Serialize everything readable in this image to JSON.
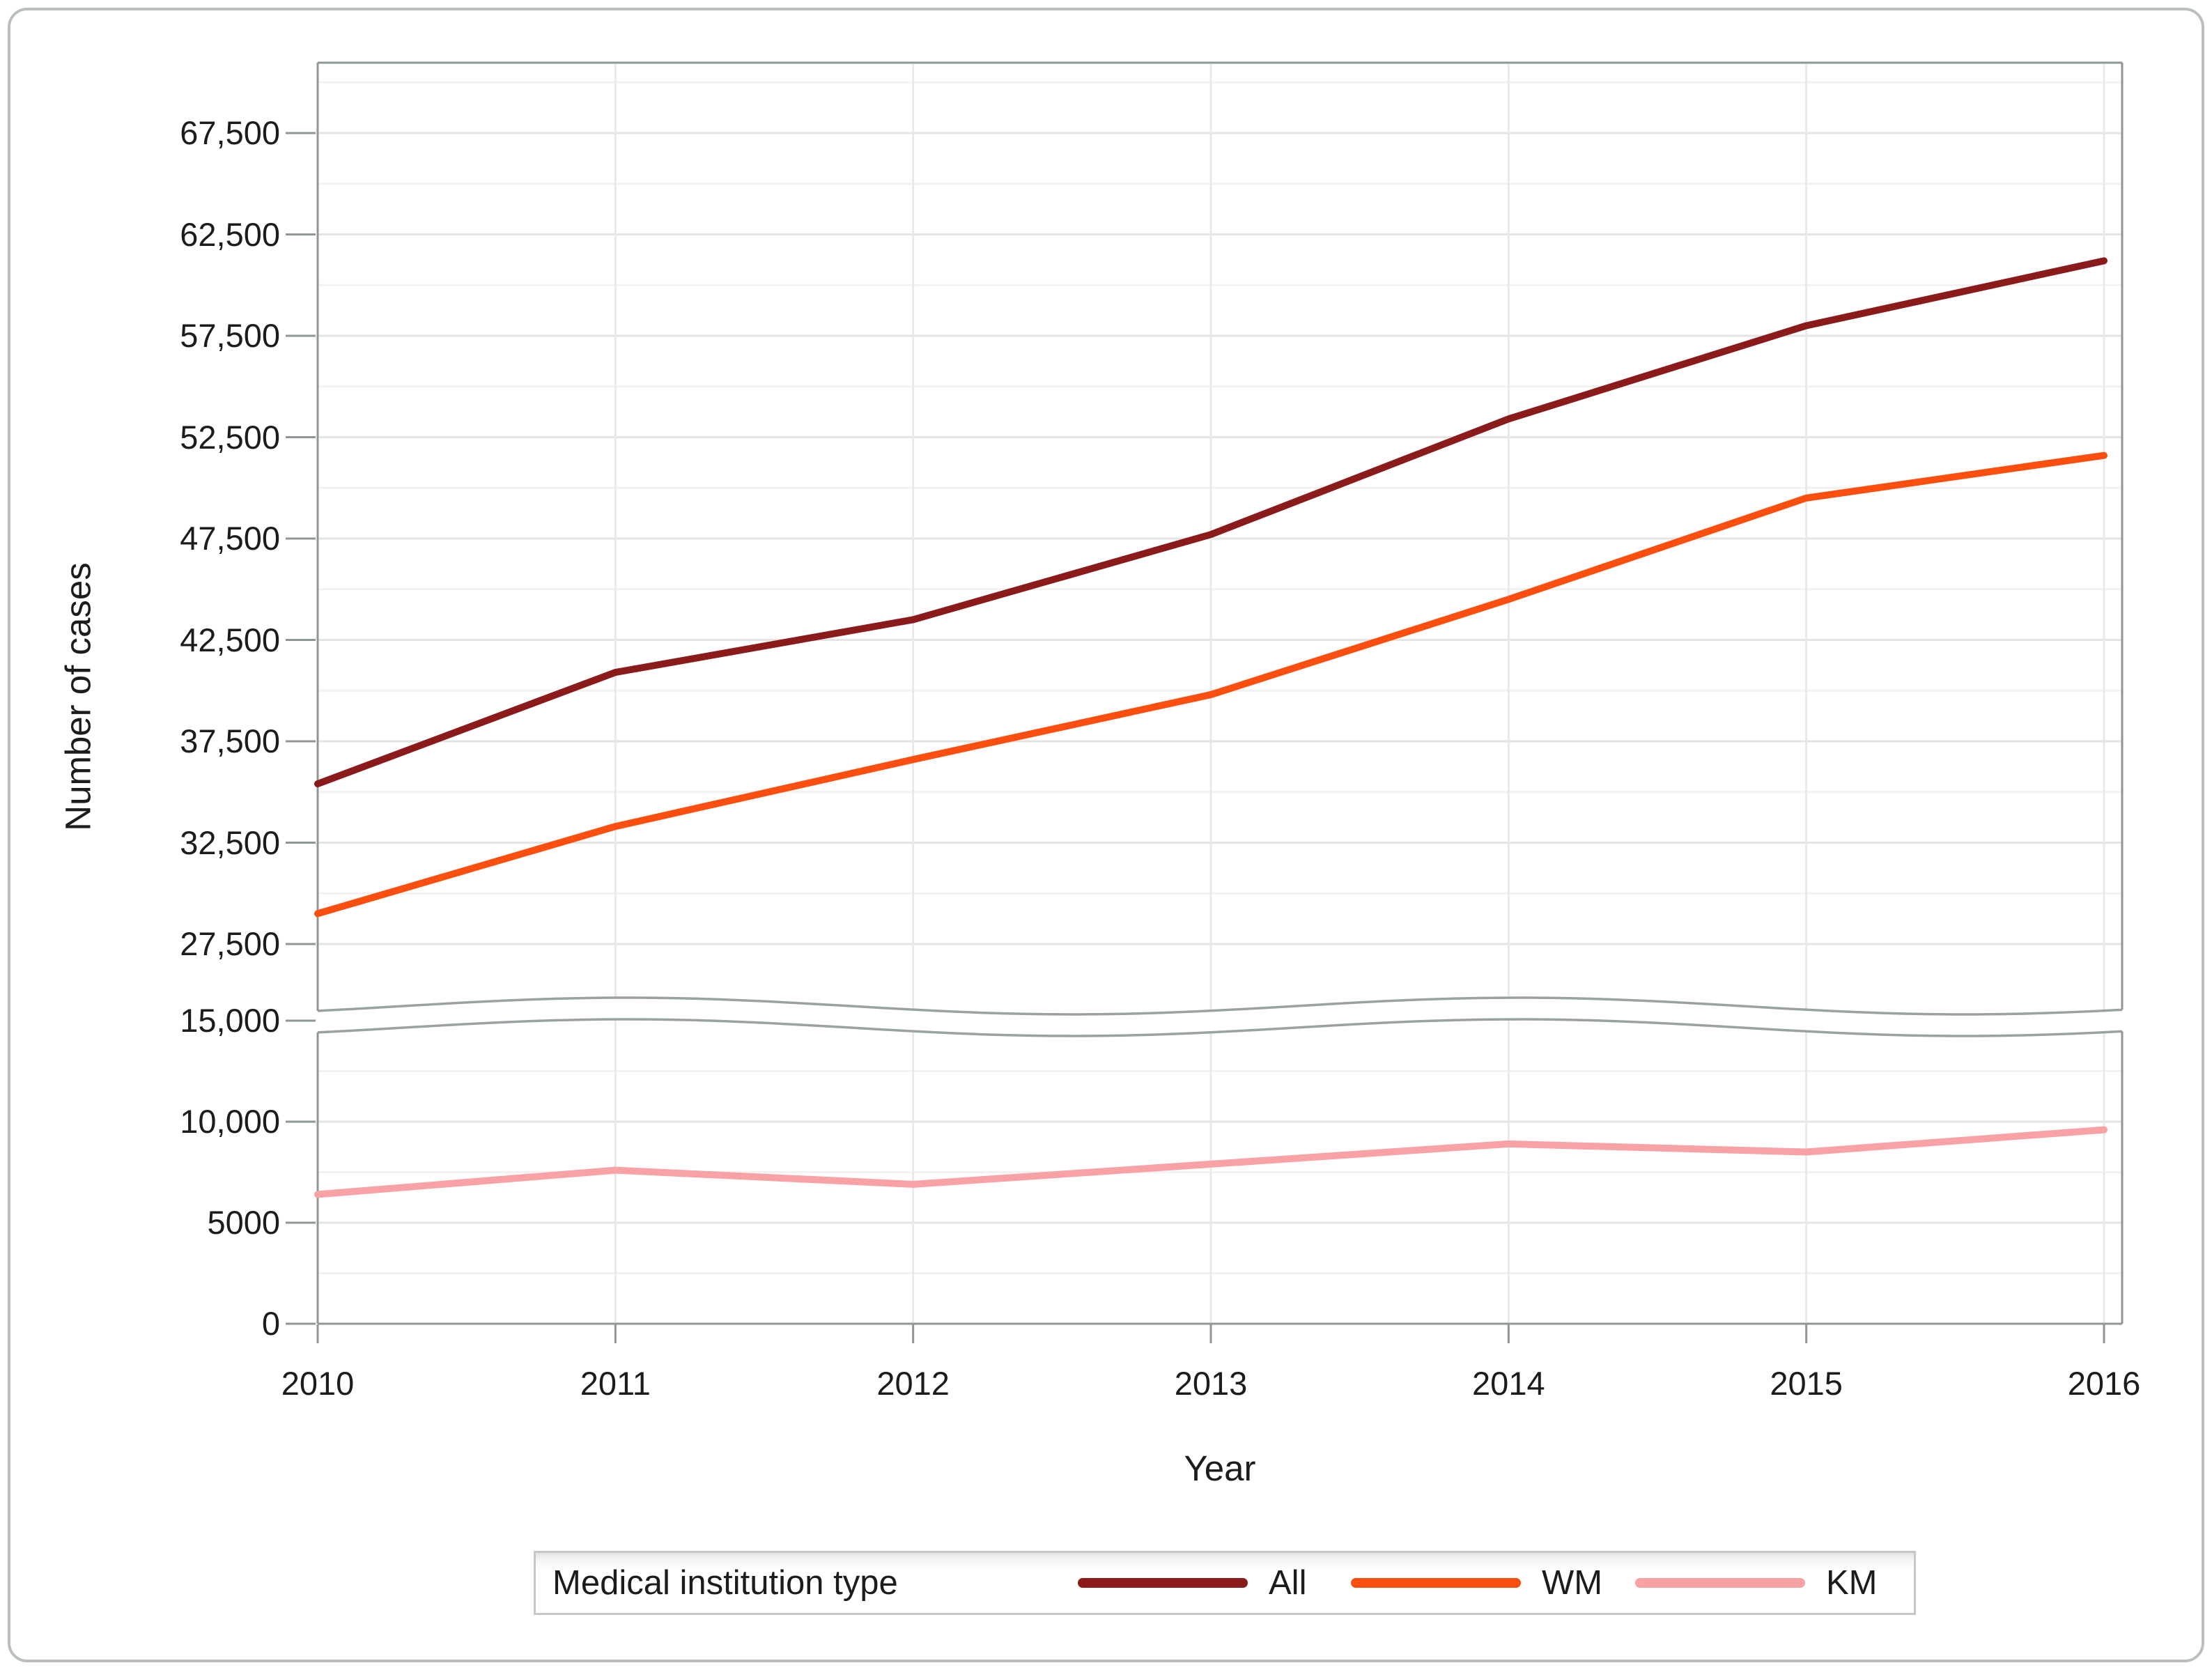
{
  "figure": {
    "frame_color": "#8e9696",
    "wave_color": "#99a1a1",
    "grid_major_color": "#e4e4e4",
    "grid_minor_color": "#f2f2f2",
    "grid_vertical_color": "#e9e9e9",
    "text_color": "#1c1c1c",
    "border_color": "#b9bfbf",
    "background": "#ffffff"
  },
  "chart_data": {
    "type": "line",
    "title": "",
    "xlabel": "Year",
    "ylabel": "Number of cases",
    "x": [
      2010,
      2011,
      2012,
      2013,
      2014,
      2015,
      2016
    ],
    "series": [
      {
        "name": "All",
        "axis": "upper",
        "color": "#8B1B1B",
        "values": [
          35400,
          40900,
          43500,
          47700,
          53400,
          58000,
          61200
        ]
      },
      {
        "name": "WM",
        "axis": "upper",
        "color": "#FC4E0E",
        "values": [
          29000,
          33300,
          36600,
          39800,
          44500,
          49500,
          51600
        ]
      },
      {
        "name": "KM",
        "axis": "lower",
        "color": "#F9A2A5",
        "values": [
          6400,
          7600,
          6900,
          7900,
          8900,
          8500,
          9600
        ]
      }
    ],
    "broken_axis": {
      "hidden_range": [
        15000,
        27500
      ],
      "upper_range": [
        27500,
        70000
      ],
      "lower_range": [
        0,
        15000
      ]
    },
    "upper_ticks": [
      {
        "value": 67500,
        "label": "67,500"
      },
      {
        "value": 62500,
        "label": "62,500"
      },
      {
        "value": 57500,
        "label": "57,500"
      },
      {
        "value": 52500,
        "label": "52,500"
      },
      {
        "value": 47500,
        "label": "47,500"
      },
      {
        "value": 42500,
        "label": "42,500"
      },
      {
        "value": 37500,
        "label": "37,500"
      },
      {
        "value": 32500,
        "label": "32,500"
      },
      {
        "value": 27500,
        "label": "27,500"
      }
    ],
    "lower_ticks": [
      {
        "value": 15000,
        "label": "15,000"
      },
      {
        "value": 10000,
        "label": "10,000"
      },
      {
        "value": 5000,
        "label": "5000"
      },
      {
        "value": 0,
        "label": "0"
      }
    ],
    "x_tick_labels": [
      "2010",
      "2011",
      "2012",
      "2013",
      "2014",
      "2015",
      "2016"
    ],
    "grid": true,
    "legend_position": "bottom"
  },
  "legend": {
    "title": "Medical institution type",
    "items": [
      {
        "label": "All",
        "color": "#8B1B1B"
      },
      {
        "label": "WM",
        "color": "#FC4E0E"
      },
      {
        "label": "KM",
        "color": "#F9A2A5"
      }
    ]
  }
}
